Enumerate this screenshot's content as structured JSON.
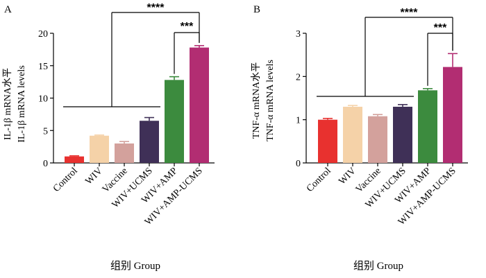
{
  "chart_data": [
    {
      "panel_label": "A",
      "type": "bar",
      "ylabel_lines": [
        "IL-1β mRNA水平",
        "IL-1β mRNA levels"
      ],
      "xlabel": "组别 Group",
      "ylim": [
        0,
        20
      ],
      "yticks": [
        "0",
        "5",
        "10",
        "15",
        "20"
      ],
      "categories": [
        "Control",
        "WIV",
        "Vaccine",
        "WIV+UCMS",
        "WIV+AMP",
        "WIV+AMP-UCMS"
      ],
      "values": [
        1.0,
        4.2,
        3.0,
        6.5,
        12.8,
        17.8
      ],
      "errors": [
        0.1,
        0.1,
        0.3,
        0.5,
        0.5,
        0.3
      ],
      "colors": [
        "#e8312f",
        "#f5d2a8",
        "#d3a19c",
        "#3f3057",
        "#3c8b3e",
        "#b22d72"
      ],
      "significance": [
        {
          "label": "****",
          "type": "bracket"
        },
        {
          "label": "***",
          "type": "bracket"
        }
      ]
    },
    {
      "panel_label": "B",
      "type": "bar",
      "ylabel_lines": [
        "TNF-α mRNA水平",
        "TNF-α mRNA levels"
      ],
      "xlabel": "组别 Group",
      "ylim": [
        0,
        3
      ],
      "yticks": [
        "0",
        "1",
        "2",
        "3"
      ],
      "categories": [
        "Control",
        "WIV",
        "Vaccine",
        "WIV+UCMS",
        "WIV+AMP",
        "WIV+AMP-UCMS"
      ],
      "values": [
        1.0,
        1.3,
        1.08,
        1.3,
        1.68,
        2.22
      ],
      "errors": [
        0.03,
        0.03,
        0.04,
        0.05,
        0.04,
        0.31
      ],
      "colors": [
        "#e8312f",
        "#f5d2a8",
        "#d3a19c",
        "#3f3057",
        "#3c8b3e",
        "#b22d72"
      ],
      "significance": [
        {
          "label": "****",
          "type": "bracket"
        },
        {
          "label": "***",
          "type": "bracket"
        }
      ]
    }
  ]
}
